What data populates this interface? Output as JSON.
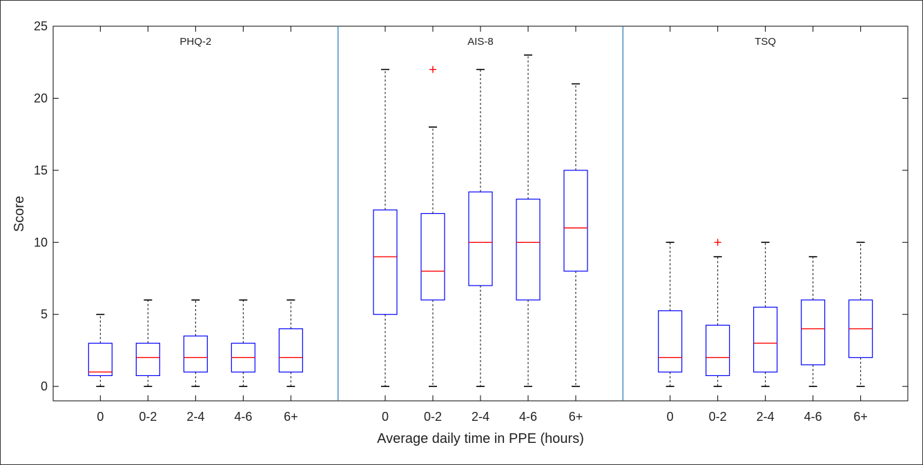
{
  "chart_data": {
    "type": "box",
    "xlabel": "Average daily time in PPE (hours)",
    "ylabel": "Score",
    "ylim": [
      -1,
      25
    ],
    "yticks": [
      0,
      5,
      10,
      15,
      20,
      25
    ],
    "categories": [
      "0",
      "0-2",
      "2-4",
      "4-6",
      "6+"
    ],
    "grid": false,
    "colors": {
      "box": "#0000ff",
      "median": "#ff0000",
      "whisker": "#000000",
      "outlier": "#ff0000",
      "panel_divider": "#1f77b4"
    },
    "panels": [
      {
        "name": "PHQ-2",
        "boxes": [
          {
            "category": "0",
            "min": 0,
            "q1": 0.75,
            "median": 1,
            "q3": 3,
            "max": 5,
            "outliers": []
          },
          {
            "category": "0-2",
            "min": 0,
            "q1": 0.75,
            "median": 2,
            "q3": 3,
            "max": 6,
            "outliers": []
          },
          {
            "category": "2-4",
            "min": 0,
            "q1": 1,
            "median": 2,
            "q3": 3.5,
            "max": 6,
            "outliers": []
          },
          {
            "category": "4-6",
            "min": 0,
            "q1": 1,
            "median": 2,
            "q3": 3,
            "max": 6,
            "outliers": []
          },
          {
            "category": "6+",
            "min": 0,
            "q1": 1,
            "median": 2,
            "q3": 4,
            "max": 6,
            "outliers": []
          }
        ]
      },
      {
        "name": "AIS-8",
        "boxes": [
          {
            "category": "0",
            "min": 0,
            "q1": 5,
            "median": 9,
            "q3": 12.25,
            "max": 22,
            "outliers": []
          },
          {
            "category": "0-2",
            "min": 0,
            "q1": 6,
            "median": 8,
            "q3": 12,
            "max": 18,
            "outliers": [
              22
            ]
          },
          {
            "category": "2-4",
            "min": 0,
            "q1": 7,
            "median": 10,
            "q3": 13.5,
            "max": 22,
            "outliers": []
          },
          {
            "category": "4-6",
            "min": 0,
            "q1": 6,
            "median": 10,
            "q3": 13,
            "max": 23,
            "outliers": []
          },
          {
            "category": "6+",
            "min": 0,
            "q1": 8,
            "median": 11,
            "q3": 15,
            "max": 21,
            "outliers": []
          }
        ]
      },
      {
        "name": "TSQ",
        "boxes": [
          {
            "category": "0",
            "min": 0,
            "q1": 1,
            "median": 2,
            "q3": 5.25,
            "max": 10,
            "outliers": []
          },
          {
            "category": "0-2",
            "min": 0,
            "q1": 0.75,
            "median": 2,
            "q3": 4.25,
            "max": 9,
            "outliers": [
              10
            ]
          },
          {
            "category": "2-4",
            "min": 0,
            "q1": 1,
            "median": 3,
            "q3": 5.5,
            "max": 10,
            "outliers": []
          },
          {
            "category": "4-6",
            "min": 0,
            "q1": 1.5,
            "median": 4,
            "q3": 6,
            "max": 9,
            "outliers": []
          },
          {
            "category": "6+",
            "min": 0,
            "q1": 2,
            "median": 4,
            "q3": 6,
            "max": 10,
            "outliers": []
          }
        ]
      }
    ]
  }
}
